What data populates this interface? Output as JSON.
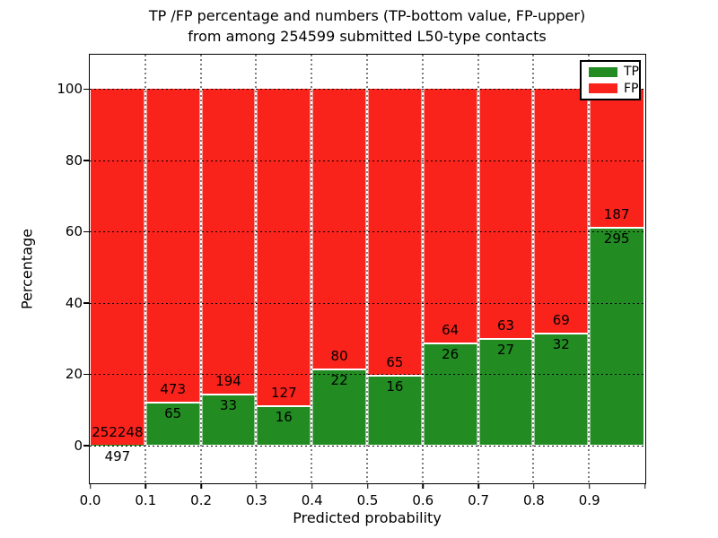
{
  "chart_data": {
    "type": "bar",
    "stacked": true,
    "normalized_to_percent": true,
    "title_line1": "TP /FP percentage and numbers (TP-bottom value, FP-upper)",
    "title_line2": "from among 254599 submitted L50-type contacts",
    "total_contacts": 254599,
    "xlabel": "Predicted probability",
    "ylabel": "Percentage",
    "x_bin_starts": [
      0.0,
      0.1,
      0.2,
      0.3,
      0.4,
      0.5,
      0.6,
      0.7,
      0.8,
      0.9
    ],
    "bin_width": 0.1,
    "xtick_labels": [
      "0.0",
      "0.1",
      "0.2",
      "0.3",
      "0.4",
      "0.5",
      "0.6",
      "0.7",
      "0.8",
      "0.9"
    ],
    "ytick_values": [
      0,
      20,
      40,
      60,
      80,
      100
    ],
    "ytick_labels": [
      "0",
      "20",
      "40",
      "60",
      "80",
      "100"
    ],
    "xlim": [
      0.0,
      1.0
    ],
    "ylim": [
      -11,
      110
    ],
    "grid": "dotted-black",
    "bar_edge_color": "#ffffff",
    "series": [
      {
        "name": "TP",
        "color": "#228b22",
        "values": [
          497,
          65,
          33,
          16,
          22,
          16,
          26,
          27,
          32,
          295
        ]
      },
      {
        "name": "FP",
        "color": "#fa231c",
        "values": [
          252248,
          473,
          194,
          127,
          80,
          65,
          64,
          63,
          69,
          187
        ]
      }
    ],
    "legend": {
      "position": "upper right",
      "entries": [
        "TP",
        "FP"
      ]
    }
  }
}
